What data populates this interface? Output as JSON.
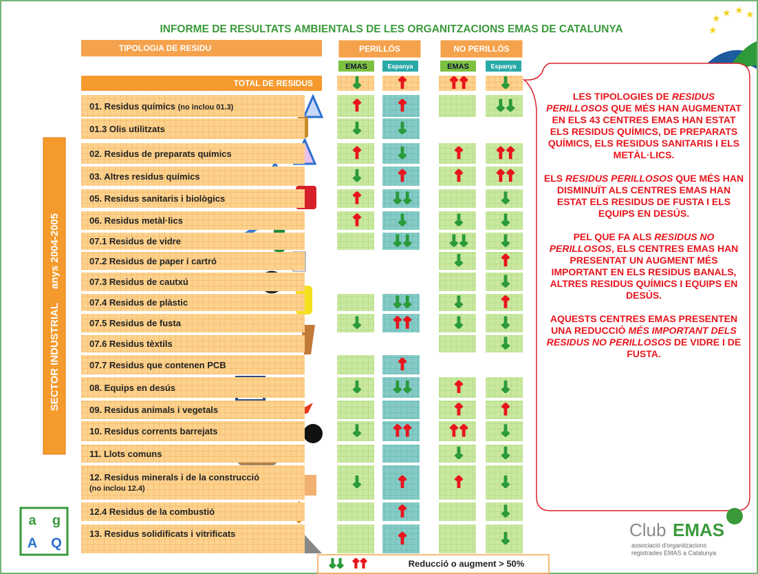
{
  "header": {
    "title": "INFORME DE RESULTATS AMBIENTALS DE LES ORGANITZACIONS EMAS DE CATALUNYA",
    "type_column": "TIPOLOGIA DE RESIDU",
    "groups": [
      "PERILLÓS",
      "NO PERILLÓS"
    ],
    "subcolumns": [
      "EMAS",
      "Espanya",
      "EMAS",
      "Espanya"
    ]
  },
  "side_label": {
    "sector": "SECTOR INDUSTRIAL",
    "years": "anys 2004-2005"
  },
  "table": {
    "rows": [
      {
        "label": "TOTAL DE RESIDUS",
        "cells": [
          "↓",
          "↑",
          "↑↑",
          "↓"
        ]
      },
      {
        "label": "01. Residus químics",
        "note": "(no inclou 01.3)",
        "cells": [
          "↑",
          "↑",
          false,
          "↓↓"
        ]
      },
      {
        "label": "01.3 Olis utilitzats",
        "cells": [
          "↓",
          "↓",
          null,
          null
        ]
      },
      {
        "label": "02. Residus de preparats químics",
        "cells": [
          "↑",
          "↓",
          "↑",
          "↑↑"
        ]
      },
      {
        "label": "03. Altres residus químics",
        "cells": [
          "↓",
          "↑",
          "↑",
          "↑↑"
        ]
      },
      {
        "label": "05. Residus sanitaris i biològics",
        "cells": [
          "↑",
          "↓↓",
          false,
          "↓"
        ]
      },
      {
        "label": "06. Residus metàl·lics",
        "cells": [
          "↑",
          "↓",
          "↓",
          "↓"
        ]
      },
      {
        "label": "07.1 Residus de vidre",
        "cells": [
          false,
          "↓↓",
          "↓↓",
          "↓"
        ]
      },
      {
        "label": "07.2 Residus de paper i cartró",
        "cells": [
          null,
          null,
          "↓",
          "↑"
        ]
      },
      {
        "label": "07.3 Residus de cautxú",
        "cells": [
          null,
          null,
          false,
          "↓"
        ]
      },
      {
        "label": "07.4 Residus de plàstic",
        "cells": [
          false,
          "↓↓",
          "↓",
          "↑"
        ]
      },
      {
        "label": "07.5 Residus de fusta",
        "cells": [
          "↓",
          "↑↑",
          "↓",
          "↓"
        ]
      },
      {
        "label": "07.6 Residus tèxtils",
        "cells": [
          null,
          null,
          false,
          "↓"
        ]
      },
      {
        "label": "07.7 Residus que contenen PCB",
        "cells": [
          false,
          "↑",
          null,
          null
        ]
      },
      {
        "label": "08. Equips en desús",
        "cells": [
          "↓",
          "↓↓",
          "↑",
          "↓"
        ]
      },
      {
        "label": "09. Residus animals i vegetals",
        "cells": [
          false,
          false,
          "↑",
          "↑"
        ]
      },
      {
        "label": "10. Residus corrents barrejats",
        "cells": [
          "↓",
          "↑↑",
          "↑↑",
          "↓"
        ]
      },
      {
        "label": "11. Llots comuns",
        "cells": [
          false,
          false,
          "↓",
          "↓"
        ]
      },
      {
        "label": "12. Residus minerals i de la construcció",
        "note": "(no inclou 12.4)",
        "cells": [
          "↓",
          "↑",
          "↑",
          "↓"
        ]
      },
      {
        "label": "12.4 Residus de la combustió",
        "cells": [
          false,
          "↑",
          false,
          "↓"
        ]
      },
      {
        "label": "13. Residus solidificats i vitrificats",
        "cells": [
          false,
          "↑",
          false,
          "↓"
        ]
      }
    ]
  },
  "callout": {
    "paragraphs": [
      [
        "LES TIPOLOGIES DE ",
        {
          "italic": "RESIDUS PERILLOSOS"
        },
        " QUE MÉS HAN AUGMENTAT EN ELS 43 CENTRES EMAS HAN ESTAT ELS RESIDUS QUÍMICS, DE PREPARATS QUÍMICS, ELS RESIDUS SANITARIS I ELS METÀL·LICS."
      ],
      [
        "ELS ",
        {
          "italic": "RESIDUS PERILLOSOS"
        },
        " QUE MÉS HAN DISMINUÏT ALS CENTRES EMAS HAN ESTAT ELS RESIDUS DE FUSTA I ELS EQUIPS EN DESÚS."
      ],
      [
        "PEL QUE FA ALS ",
        {
          "italic": "RESIDUS NO PERILLOSOS"
        },
        ", ELS CENTRES EMAS HAN PRESENTAT UN AUGMENT MÉS IMPORTANT EN ELS RESIDUS BANALS, ALTRES RESIDUS QUÍMICS I EQUIPS EN DESÚS."
      ],
      [
        "AQUESTS CENTRES EMAS PRESENTEN UNA REDUCCIÓ ",
        {
          "italic": "MÉS IMPORTANT DELS RESIDUS NO PERILLOSOS"
        },
        " DE VIDRE I DE FUSTA."
      ]
    ]
  },
  "legend": {
    "symbols": [
      "↓↓",
      "↑↑"
    ],
    "text": "Reducció o augment > 50%"
  },
  "logos": {
    "agaq": [
      "a",
      "g",
      "A",
      "Q"
    ],
    "club": {
      "prefix": "Club",
      "name": "EMAS",
      "line1": "associació d'organitzacions",
      "line2": "registrades EMAS a Catalunya"
    }
  }
}
